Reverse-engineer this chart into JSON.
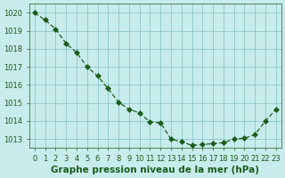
{
  "x": [
    0,
    1,
    2,
    3,
    4,
    5,
    6,
    7,
    8,
    9,
    10,
    11,
    12,
    13,
    14,
    15,
    16,
    17,
    18,
    19,
    20,
    21,
    22,
    23
  ],
  "y": [
    1020.0,
    1019.6,
    1019.1,
    1018.3,
    1017.8,
    1017.0,
    1016.5,
    1015.8,
    1015.05,
    1014.65,
    1014.45,
    1013.95,
    1013.9,
    1013.0,
    1012.85,
    1012.65,
    1012.7,
    1012.75,
    1012.8,
    1013.0,
    1013.05,
    1013.25,
    1014.0,
    1014.65
  ],
  "line_color": "#1a5c1a",
  "marker": "D",
  "marker_size": 3,
  "bg_color": "#c8ecec",
  "grid_color": "#7fbfbf",
  "xlabel": "Graphe pression niveau de la mer (hPa)",
  "xlabel_fontsize": 7.5,
  "xlabel_color": "#1a5c1a",
  "xlabel_bold": true,
  "tick_color": "#1a5c1a",
  "ylim": [
    1012.5,
    1020.5
  ],
  "xlim": [
    -0.5,
    23.5
  ],
  "yticks": [
    1013,
    1014,
    1015,
    1016,
    1017,
    1018,
    1019,
    1020
  ],
  "xticks": [
    0,
    1,
    2,
    3,
    4,
    5,
    6,
    7,
    8,
    9,
    10,
    11,
    12,
    13,
    14,
    15,
    16,
    17,
    18,
    19,
    20,
    21,
    22,
    23
  ],
  "tick_fontsize": 6
}
